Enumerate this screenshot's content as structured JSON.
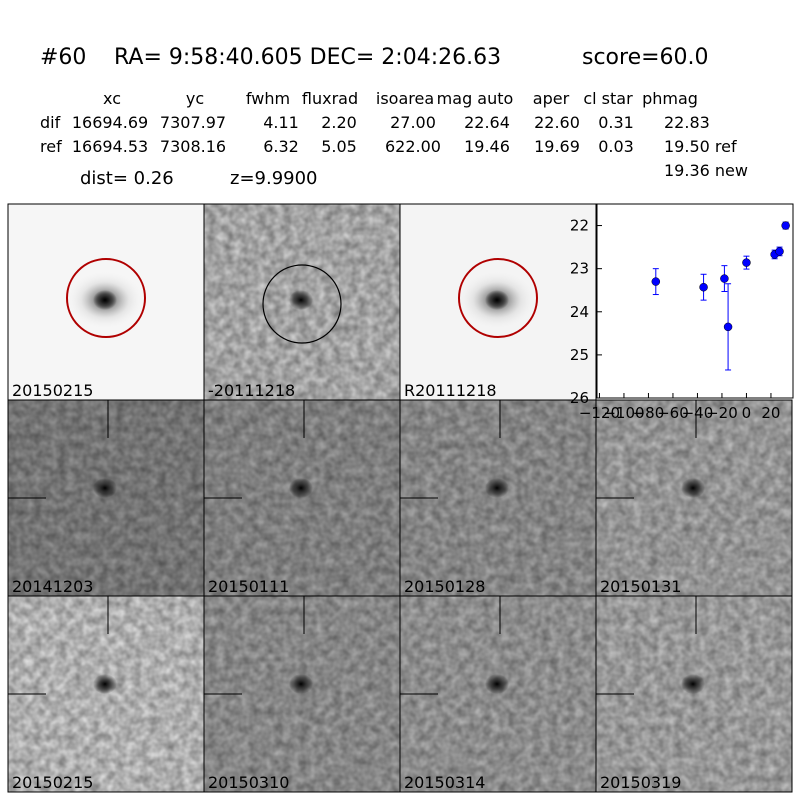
{
  "header": {
    "id": "#60",
    "coords": "RA= 9:58:40.605 DEC= 2:04:26.63",
    "score": "score=60.0"
  },
  "table": {
    "columns": [
      "xc",
      "yc",
      "fwhm",
      "fluxrad",
      "isoarea",
      "mag auto",
      "aper",
      "cl star",
      "phmag"
    ],
    "rows": [
      [
        "dif",
        "16694.69",
        "7307.97",
        "4.11",
        "2.20",
        "27.00",
        "22.64",
        "22.60",
        "0.31",
        "22.83"
      ],
      [
        "ref",
        "16694.53",
        "7308.16",
        "6.32",
        "5.05",
        "622.00",
        "19.46",
        "19.69",
        "0.03",
        "19.50 ref"
      ]
    ],
    "extra": "19.36 new",
    "dist": "dist=  0.26",
    "z": "z=9.9900"
  },
  "stamps": [
    {
      "label": "20150215"
    },
    {
      "label": "-20111218"
    },
    {
      "label": "R20111218"
    },
    {
      "label": "20141203"
    },
    {
      "label": "20150111"
    },
    {
      "label": "20150128"
    },
    {
      "label": "20150131"
    },
    {
      "label": "20150215",
      "color": "#ff0000"
    },
    {
      "label": "20150310"
    },
    {
      "label": "20150314"
    },
    {
      "label": "20150319"
    }
  ],
  "chart_data": {
    "type": "scatter",
    "color": "#0000ff",
    "x": [
      -74,
      -35,
      -18,
      -15,
      0,
      23,
      27,
      32
    ],
    "values": [
      23.3,
      23.43,
      23.23,
      24.35,
      22.86,
      22.67,
      22.6,
      22.0
    ],
    "errors": [
      0.3,
      0.3,
      0.3,
      1.0,
      0.15,
      0.1,
      0.1,
      0.08
    ],
    "xlim": [
      -122,
      38
    ],
    "xticks": [
      {
        "value": -120,
        "label": "−120"
      },
      {
        "value": -100,
        "label": "−100"
      },
      {
        "value": -80,
        "label": "−80"
      },
      {
        "value": -60,
        "label": "−60"
      },
      {
        "value": -40,
        "label": "−40"
      },
      {
        "value": -20,
        "label": "−20"
      },
      0,
      20
    ],
    "ylim": [
      26,
      21.5
    ],
    "yticks": [
      22,
      23,
      24,
      25,
      26
    ]
  }
}
